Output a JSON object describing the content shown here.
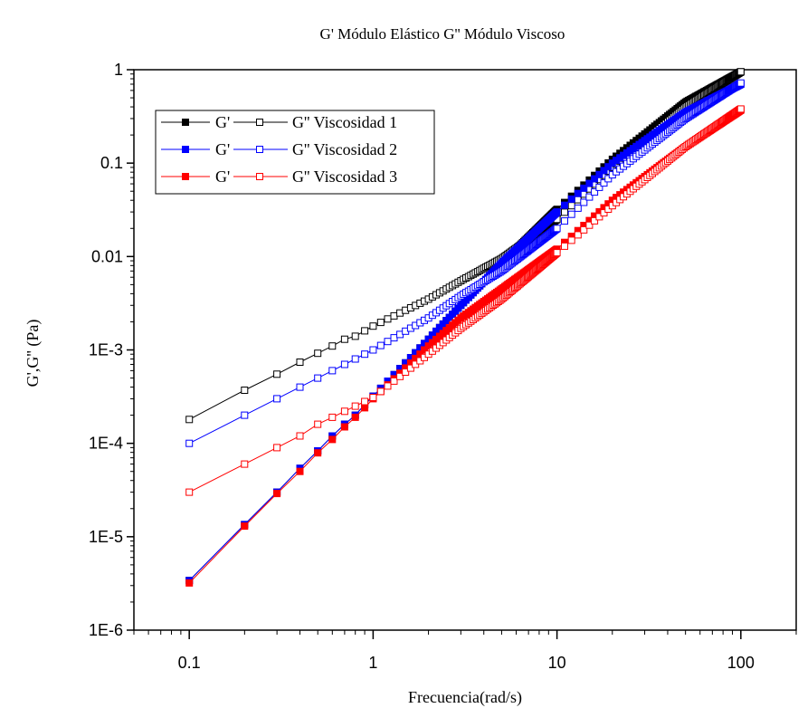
{
  "chart_data": {
    "type": "line",
    "title": "G'  Módulo Elástico  G'' Módulo Viscoso",
    "xlabel": "Frecuencia(rad/s)",
    "ylabel": "G',G'' (Pa)",
    "xscale": "log",
    "yscale": "log",
    "xlim": [
      0.05,
      200
    ],
    "ylim": [
      1e-06,
      1
    ],
    "xticks": [
      0.1,
      1,
      10,
      100
    ],
    "xtick_labels": [
      "0.1",
      "1",
      "10",
      "100"
    ],
    "yticks": [
      1e-06,
      1e-05,
      0.0001,
      0.001,
      0.01,
      0.1,
      1
    ],
    "ytick_labels": [
      "1E-6",
      "1E-5",
      "1E-4",
      "1E-3",
      "0.01",
      "0.1",
      "1"
    ],
    "grid": false,
    "legend": {
      "placement": "top-left",
      "g_prime_label": "G'",
      "entries": [
        {
          "g_double_prime_label": "G'' Viscosidad 1",
          "color": "#000000"
        },
        {
          "g_double_prime_label": "G'' Viscosidad 2",
          "color": "#0000ff"
        },
        {
          "g_double_prime_label": "G'' Viscosidad 3",
          "color": "#ff0000"
        }
      ]
    },
    "x": [
      0.1,
      0.2,
      0.3,
      0.4,
      0.5,
      0.6,
      0.7,
      0.8,
      0.9,
      1,
      2,
      3,
      5,
      10,
      20,
      50,
      100
    ],
    "series": [
      {
        "name": "G'",
        "group": "Viscosidad 1",
        "marker": "filled-square",
        "color": "#000000",
        "values": [
          3.4e-06,
          1.35e-05,
          3e-05,
          5.4e-05,
          8.3e-05,
          0.00012,
          0.00016,
          0.0002,
          0.00026,
          0.00032,
          0.0013,
          0.003,
          0.0085,
          0.032,
          0.11,
          0.45,
          0.95
        ]
      },
      {
        "name": "G''",
        "group": "Viscosidad 1",
        "marker": "open-square",
        "color": "#000000",
        "values": [
          0.00018,
          0.00037,
          0.00055,
          0.00074,
          0.00092,
          0.0011,
          0.0013,
          0.0014,
          0.0016,
          0.0018,
          0.0035,
          0.0055,
          0.0095,
          0.025,
          0.09,
          0.4,
          0.95
        ]
      },
      {
        "name": "G'",
        "group": "Viscosidad 2",
        "marker": "filled-square",
        "color": "#0000ff",
        "values": [
          3.4e-06,
          1.35e-05,
          3e-05,
          5.4e-05,
          8.3e-05,
          0.00012,
          0.00016,
          0.0002,
          0.00026,
          0.00032,
          0.0013,
          0.003,
          0.0085,
          0.03,
          0.1,
          0.35,
          0.7
        ]
      },
      {
        "name": "G''",
        "group": "Viscosidad 2",
        "marker": "open-square",
        "color": "#0000ff",
        "values": [
          0.0001,
          0.0002,
          0.0003,
          0.0004,
          0.0005,
          0.0006,
          0.0007,
          0.0008,
          0.0009,
          0.001,
          0.0022,
          0.0038,
          0.007,
          0.02,
          0.075,
          0.3,
          0.72
        ]
      },
      {
        "name": "G'",
        "group": "Viscosidad 3",
        "marker": "filled-square",
        "color": "#ff0000",
        "values": [
          3.2e-06,
          1.3e-05,
          2.9e-05,
          5e-05,
          7.9e-05,
          0.00011,
          0.00015,
          0.00019,
          0.00024,
          0.0003,
          0.0011,
          0.0022,
          0.0045,
          0.012,
          0.04,
          0.15,
          0.37
        ]
      },
      {
        "name": "G''",
        "group": "Viscosidad 3",
        "marker": "open-square",
        "color": "#ff0000",
        "values": [
          3e-05,
          6e-05,
          9e-05,
          0.00012,
          0.00016,
          0.00019,
          0.00022,
          0.00025,
          0.00028,
          0.00031,
          0.0009,
          0.0017,
          0.0035,
          0.011,
          0.035,
          0.15,
          0.38
        ]
      }
    ]
  }
}
